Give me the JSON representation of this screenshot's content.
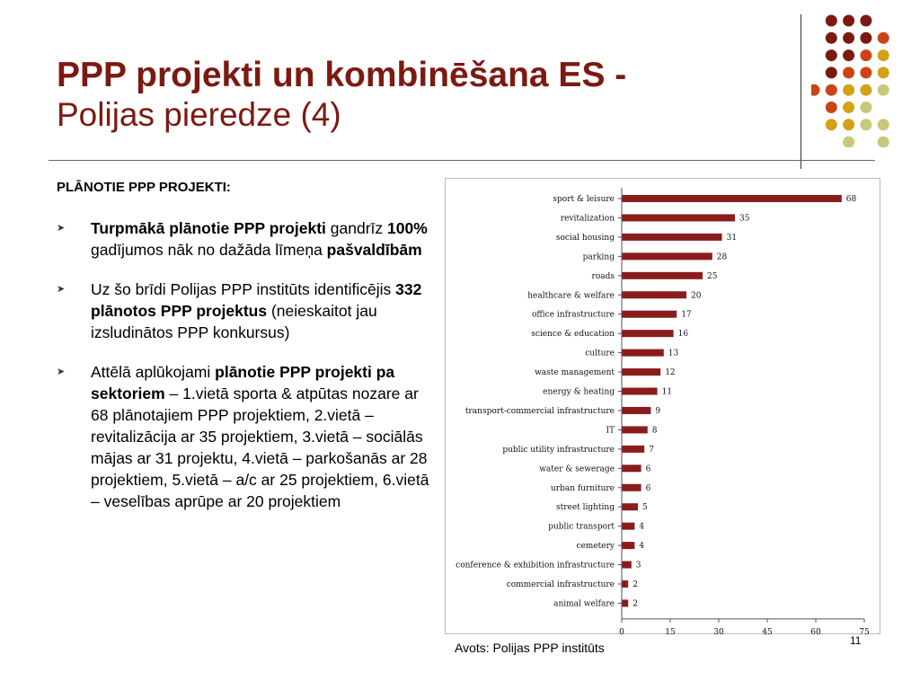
{
  "title": {
    "main": "PPP projekti un kombinēšana ES -",
    "sub": "Polijas pieredze (4)"
  },
  "heading": "PLĀNOTIE PPP PROJEKTI:",
  "bullets": [
    {
      "bold1": "Turpmākā plānotie PPP projekti",
      "text1": " gandrīz ",
      "bold2": "100%",
      "text2": " gadījumos nāk no dažāda līmeņa ",
      "bold3": "pašvaldībām"
    },
    {
      "text1": "Uz šo brīdi Polijas PPP institūts identificējis ",
      "bold1": "332 plānotos PPP projektus",
      "text2": " (neieskaitot jau izsludinātos PPP konkursus)"
    },
    {
      "text1": "Attēlā aplūkojami ",
      "bold1": "plānotie PPP projekti pa sektoriem",
      "text2": " – 1.vietā sporta & atpūtas nozare ar 68 plānotajiem PPP projektiem, 2.vietā – revitalizācija ar 35 projektiem, 3.vietā – sociālās mājas ar 31 projektu, 4.vietā – parkošanās ar 28 projektiem, 5.vietā – a/c ar 25 projektiem, 6.vietā – veselības aprūpe ar 20 projektiem"
    }
  ],
  "source": "Avots: Polijas PPP institūts",
  "page_number": "11",
  "colors": {
    "title": "#7b1a12",
    "bar": "#8b1c1c",
    "dot_dark": "#7b1a12",
    "dot_orange": "#cc4415",
    "dot_gold": "#d4a017",
    "dot_khaki": "#c8c87a"
  },
  "chart_data": {
    "type": "bar",
    "orientation": "horizontal",
    "categories": [
      "sport & leisure",
      "revitalization",
      "social housing",
      "parking",
      "roads",
      "healthcare & welfare",
      "office infrastructure",
      "science & education",
      "culture",
      "waste management",
      "energy & heating",
      "transport-commercial infrastructure",
      "IT",
      "public utility infrastructure",
      "water & sewerage",
      "urban furniture",
      "street lighting",
      "public transport",
      "cemetery",
      "conference & exhibition infrastructure",
      "commercial infrastructure",
      "animal welfare"
    ],
    "values": [
      68,
      35,
      31,
      28,
      25,
      20,
      17,
      16,
      13,
      12,
      11,
      9,
      8,
      7,
      6,
      6,
      5,
      4,
      4,
      3,
      2,
      2
    ],
    "xticks": [
      0,
      15,
      30,
      45,
      60,
      75
    ],
    "xlim": [
      0,
      75
    ],
    "grid": false,
    "legend": "none"
  }
}
